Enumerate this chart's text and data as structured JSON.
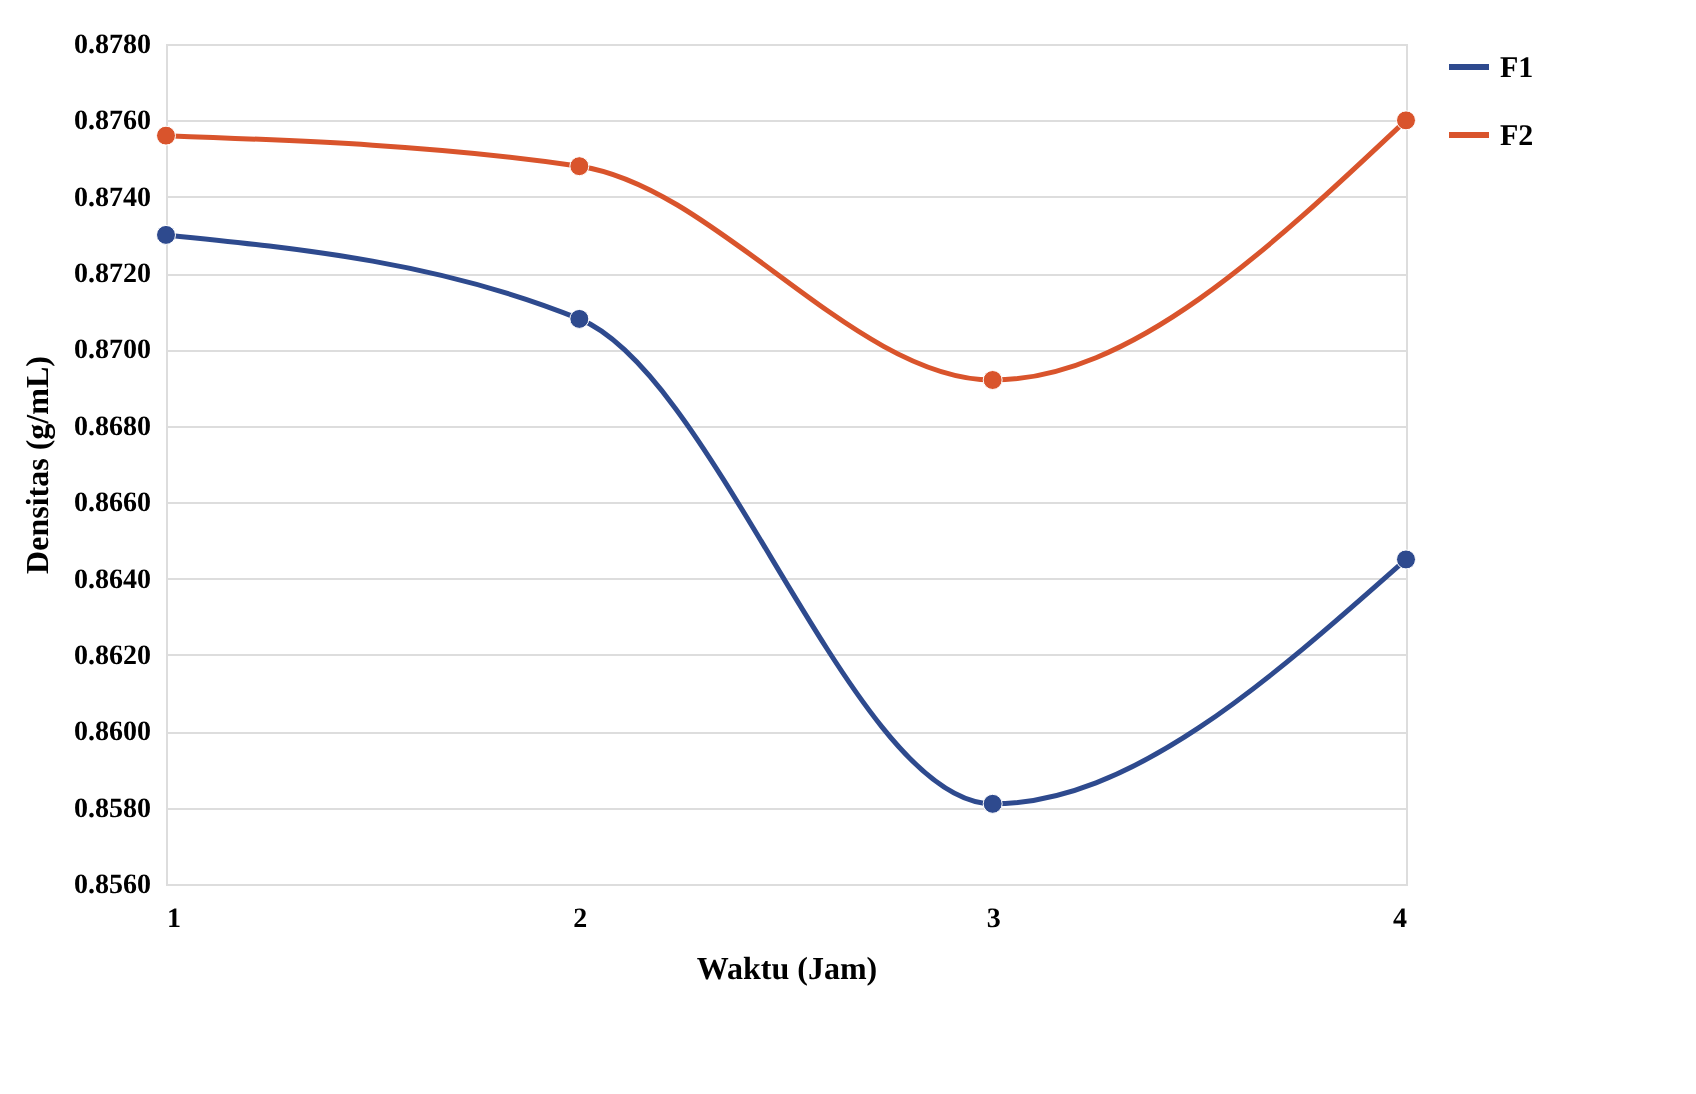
{
  "chart_data": {
    "type": "line",
    "xlabel": "Waktu (Jam)",
    "ylabel": "Densitas (g/mL)",
    "x": [
      1,
      2,
      3,
      4
    ],
    "xlim": [
      1,
      4
    ],
    "xticks": [
      1,
      2,
      3,
      4
    ],
    "ylim": [
      0.856,
      0.878
    ],
    "yticks": [
      {
        "value": 0.856,
        "label": "0.8560"
      },
      {
        "value": 0.858,
        "label": "0.8580"
      },
      {
        "value": 0.86,
        "label": "0.8600"
      },
      {
        "value": 0.862,
        "label": "0.8620"
      },
      {
        "value": 0.864,
        "label": "0.8640"
      },
      {
        "value": 0.866,
        "label": "0.8660"
      },
      {
        "value": 0.868,
        "label": "0.8680"
      },
      {
        "value": 0.87,
        "label": "0.8700"
      },
      {
        "value": 0.872,
        "label": "0.8720"
      },
      {
        "value": 0.874,
        "label": "0.8740"
      },
      {
        "value": 0.876,
        "label": "0.8760"
      },
      {
        "value": 0.878,
        "label": "0.8780"
      }
    ],
    "series": [
      {
        "name": "F1",
        "color": "#2e4a8e",
        "values": [
          0.873,
          0.8708,
          0.8581,
          0.8645
        ]
      },
      {
        "name": "F2",
        "color": "#d9542c",
        "values": [
          0.8756,
          0.8748,
          0.8692,
          0.876
        ]
      }
    ],
    "grid": "y",
    "legend": "right",
    "marker": "circle",
    "line_style": "solid"
  }
}
